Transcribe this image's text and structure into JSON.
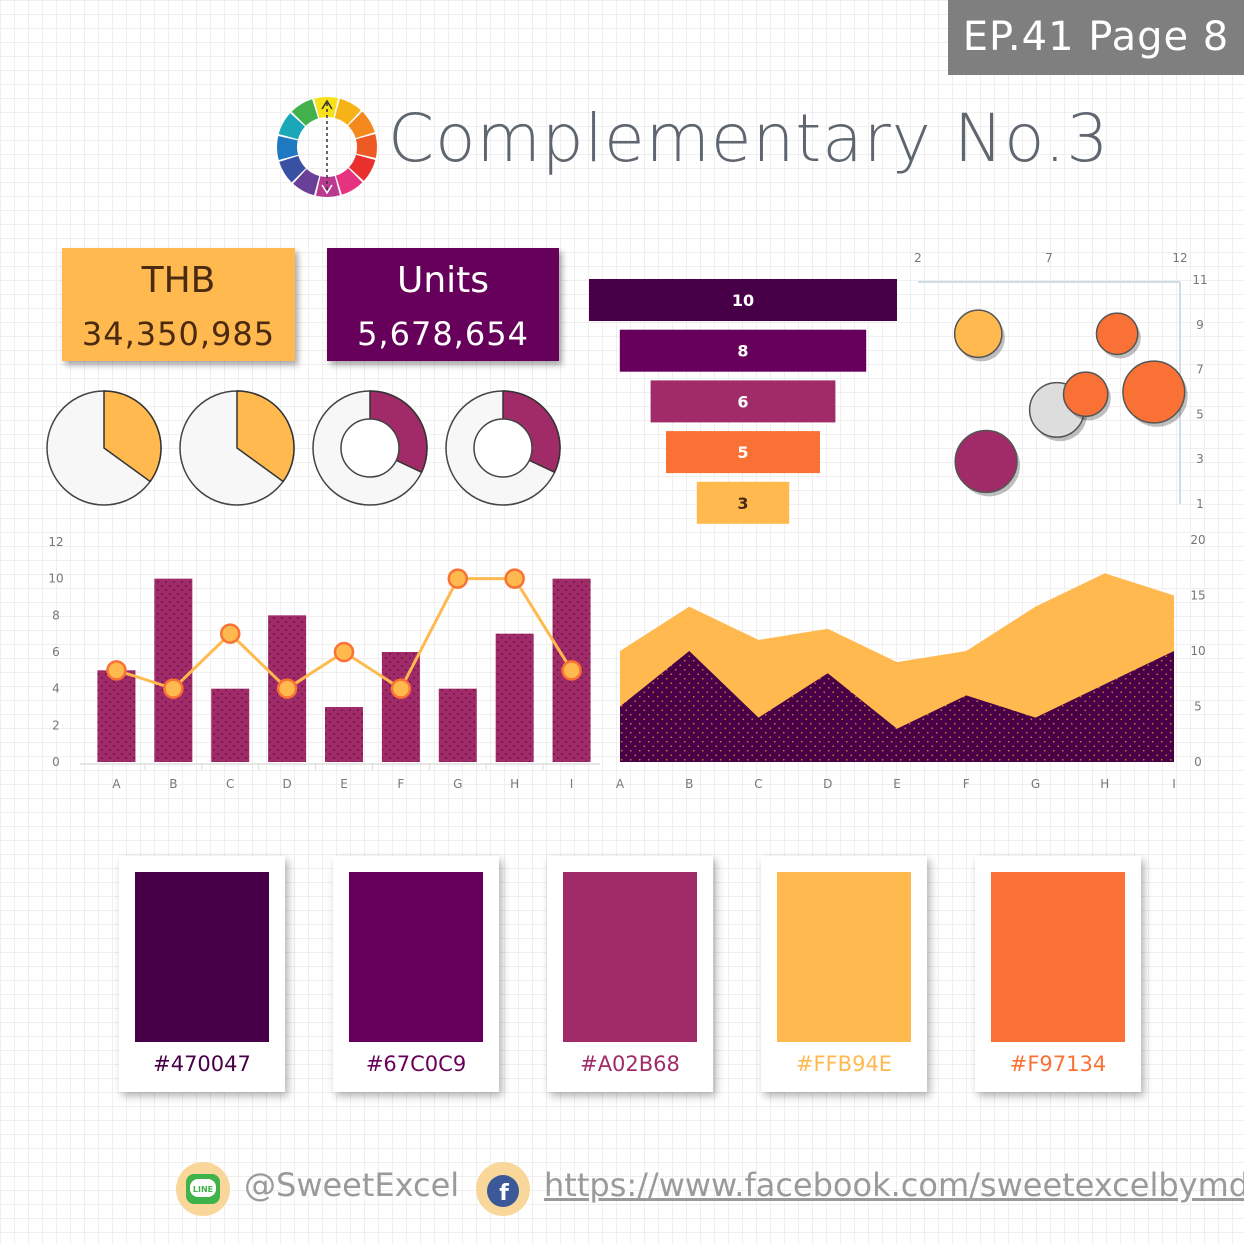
{
  "header": {
    "badge": "EP.41 Page 8",
    "title": "Complementary No.3"
  },
  "colors": {
    "c1": "#470047",
    "c2": "#67C0C9",
    "c3": "#A02B68",
    "c4": "#FFB94E",
    "c5": "#F97134"
  },
  "kpis": [
    {
      "label": "THB",
      "value": "34,350,985"
    },
    {
      "label": "Units",
      "value": "5,678,654"
    }
  ],
  "chart_data": [
    {
      "type": "pie",
      "title": "",
      "slices": [
        35,
        65
      ]
    },
    {
      "type": "pie",
      "title": "",
      "slices": [
        35,
        65
      ]
    },
    {
      "type": "pie",
      "subtype": "donut",
      "title": "",
      "slices": [
        32,
        68
      ]
    },
    {
      "type": "pie",
      "subtype": "donut",
      "title": "",
      "slices": [
        32,
        68
      ]
    },
    {
      "type": "bar",
      "subtype": "funnel",
      "title": "",
      "values": [
        10,
        8,
        6,
        5,
        3
      ],
      "value_labels": [
        "10",
        "8",
        "6",
        "5",
        "3"
      ]
    },
    {
      "type": "scatter",
      "subtype": "bubble",
      "title": "",
      "xlim": [
        2,
        12
      ],
      "ylim": [
        1,
        11
      ],
      "x_ticks": [
        "2",
        "7",
        "12"
      ],
      "y_ticks": [
        "1",
        "3",
        "5",
        "7",
        "9",
        "11"
      ],
      "points": [
        {
          "x": 4.3,
          "y": 8.6,
          "size": 2,
          "color": "#FFB94E"
        },
        {
          "x": 9.6,
          "y": 8.6,
          "size": 1.6,
          "color": "#F97134"
        },
        {
          "x": 7.3,
          "y": 5.2,
          "size": 2.5,
          "color": "#dddddd"
        },
        {
          "x": 8.4,
          "y": 5.9,
          "size": 1.8,
          "color": "#F97134"
        },
        {
          "x": 11.0,
          "y": 6.0,
          "size": 3,
          "color": "#F97134"
        },
        {
          "x": 4.6,
          "y": 2.9,
          "size": 3,
          "color": "#A02B68"
        }
      ]
    },
    {
      "type": "bar",
      "subtype": "bar-line combo",
      "title": "",
      "categories": [
        "A",
        "B",
        "C",
        "D",
        "E",
        "F",
        "G",
        "H",
        "I"
      ],
      "ylim": [
        0,
        12
      ],
      "y_ticks": [
        "0",
        "2",
        "4",
        "6",
        "8",
        "10",
        "12"
      ],
      "series": [
        {
          "type": "bar",
          "values": [
            5,
            10,
            4,
            8,
            3,
            6,
            4,
            7,
            10
          ]
        },
        {
          "type": "line",
          "values": [
            5,
            4,
            7,
            4,
            6,
            4,
            10,
            10,
            5
          ]
        }
      ]
    },
    {
      "type": "area",
      "title": "",
      "categories": [
        "A",
        "B",
        "C",
        "D",
        "E",
        "F",
        "G",
        "H",
        "I"
      ],
      "ylim": [
        0,
        20
      ],
      "y_ticks": [
        "0",
        "5",
        "10",
        "15",
        "20"
      ],
      "series": [
        {
          "values": [
            10,
            14,
            11,
            12,
            9,
            10,
            14,
            17,
            15
          ]
        },
        {
          "values": [
            5,
            10,
            4,
            8,
            3,
            6,
            4,
            7,
            10
          ]
        }
      ]
    }
  ],
  "footer": {
    "line_handle": "@SweetExcel",
    "facebook_url": "https://www.facebook.com/sweetexcelbymd/"
  }
}
